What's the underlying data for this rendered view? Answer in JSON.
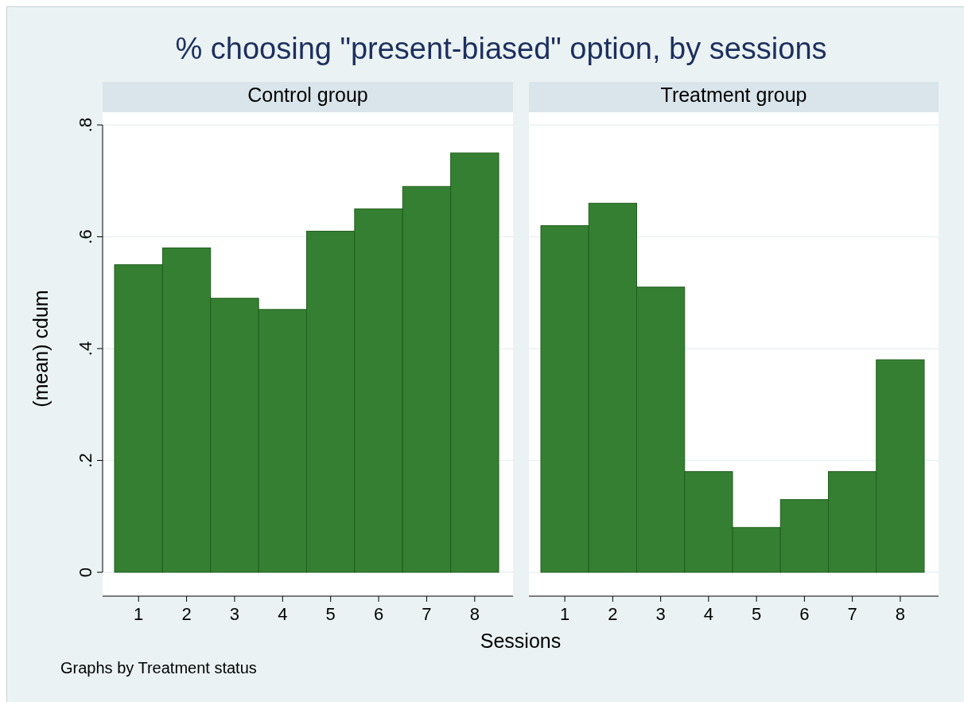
{
  "chart_data": [
    {
      "type": "bar",
      "title": "% choosing \"present-biased\" option, by sessions",
      "subtitle": "Control group",
      "xlabel": "Sessions",
      "ylabel": "(mean) cdum",
      "annotations": [
        "Graphs by Treatment status"
      ],
      "categories": [
        "1",
        "2",
        "3",
        "4",
        "5",
        "6",
        "7",
        "8"
      ],
      "values": [
        0.55,
        0.58,
        0.49,
        0.47,
        0.61,
        0.65,
        0.69,
        0.75
      ],
      "color": "#357f32",
      "ylim": [
        0,
        0.8
      ],
      "yticks": [
        {
          "value": 0,
          "label": "0"
        },
        {
          "value": 0.2,
          "label": ".2"
        },
        {
          "value": 0.4,
          "label": ".4"
        },
        {
          "value": 0.6,
          "label": ".6"
        },
        {
          "value": 0.8,
          "label": ".8"
        }
      ],
      "grid": "y"
    },
    {
      "type": "bar",
      "subtitle": "Treatment group",
      "categories": [
        "1",
        "2",
        "3",
        "4",
        "5",
        "6",
        "7",
        "8"
      ],
      "values": [
        0.62,
        0.66,
        0.51,
        0.18,
        0.08,
        0.13,
        0.18,
        0.38
      ],
      "color": "#357f32",
      "ylim": [
        0,
        0.8
      ],
      "yticks": [
        0,
        0.2,
        0.4,
        0.6,
        0.8
      ],
      "grid": "y",
      "tick_labels": "x"
    }
  ]
}
